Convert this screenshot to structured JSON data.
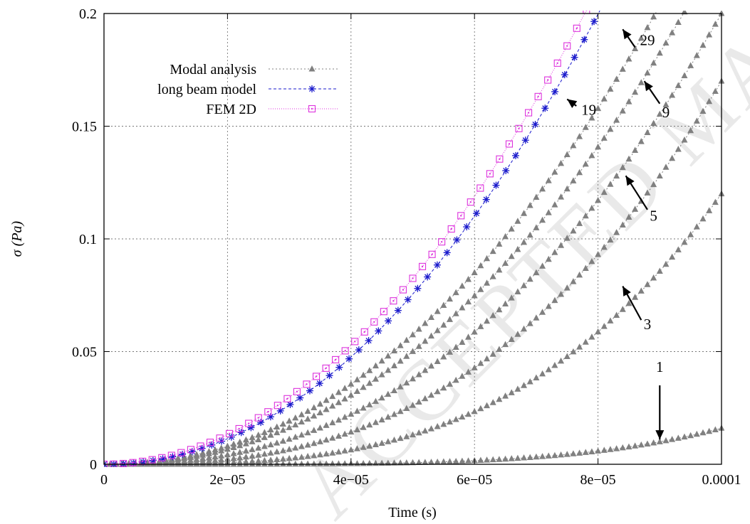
{
  "watermark": "ACCEPTED MANUSCRIPT",
  "chart_data": {
    "type": "scatter",
    "title": "",
    "xlabel": "Time (s)",
    "ylabel_symbol": "σ",
    "ylabel_unit": "(Pa)",
    "xlim": [
      0,
      0.0001
    ],
    "ylim": [
      0,
      0.2
    ],
    "x_ticks": [
      0,
      2e-05,
      4e-05,
      6e-05,
      8e-05,
      0.0001
    ],
    "x_tick_labels": [
      "0",
      "2e−05",
      "4e−05",
      "6e−05",
      "8e−05",
      "0.0001"
    ],
    "y_ticks": [
      0,
      0.05,
      0.1,
      0.15,
      0.2
    ],
    "y_tick_labels": [
      "0",
      "0.05",
      "0.1",
      "0.15",
      "0.2"
    ],
    "grid": true,
    "legend_position": "top-left",
    "series": [
      {
        "name": "Modal analysis",
        "color": "#808080",
        "marker": "triangle",
        "line": "dotted",
        "modes": [
          {
            "label": "1",
            "exponent": 4.5,
            "y_at_xmax": 0.016
          },
          {
            "label": "3",
            "exponent": 3.2,
            "y_at_xmax": 0.12
          },
          {
            "label": "5",
            "exponent": 2.7,
            "y_at_xmax": 0.17
          },
          {
            "label": "9",
            "exponent": 2.4,
            "y_at_xmax": 0.2
          },
          {
            "label": "19",
            "exponent": 2.2,
            "y_at_xmax": 0.23
          },
          {
            "label": "29",
            "exponent": 2.15,
            "y_at_xmax": 0.255
          }
        ]
      },
      {
        "name": "long beam model",
        "color": "#1a1acc",
        "marker": "star",
        "line": "dashed",
        "exponent": 2.07,
        "y_at_xmax": 0.317
      },
      {
        "name": "FEM 2D",
        "color": "#dd33dd",
        "marker": "square-dot",
        "line": "dotted",
        "exponent": 2.0,
        "y_at_xmax": 0.33
      }
    ],
    "annotations": [
      {
        "label": "1",
        "text_x": 9e-05,
        "text_y": 0.041,
        "arrow_from": [
          9e-05,
          0.035
        ],
        "arrow_to": [
          9e-05,
          0.011
        ]
      },
      {
        "label": "3",
        "text_x": 8.8e-05,
        "text_y": 0.06,
        "arrow_from": [
          8.7e-05,
          0.064
        ],
        "arrow_to": [
          8.4e-05,
          0.079
        ]
      },
      {
        "label": "5",
        "text_x": 8.9e-05,
        "text_y": 0.108,
        "arrow_from": [
          8.8e-05,
          0.113
        ],
        "arrow_to": [
          8.45e-05,
          0.128
        ]
      },
      {
        "label": "9",
        "text_x": 9.1e-05,
        "text_y": 0.154,
        "arrow_from": [
          9e-05,
          0.16
        ],
        "arrow_to": [
          8.75e-05,
          0.17
        ]
      },
      {
        "label": "19",
        "text_x": 7.85e-05,
        "text_y": 0.155,
        "arrow_from": [
          7.65e-05,
          0.159
        ],
        "arrow_to": [
          7.5e-05,
          0.162
        ]
      },
      {
        "label": "29",
        "text_x": 8.8e-05,
        "text_y": 0.186,
        "arrow_from": [
          8.6e-05,
          0.185
        ],
        "arrow_to": [
          8.4e-05,
          0.193
        ]
      }
    ]
  }
}
